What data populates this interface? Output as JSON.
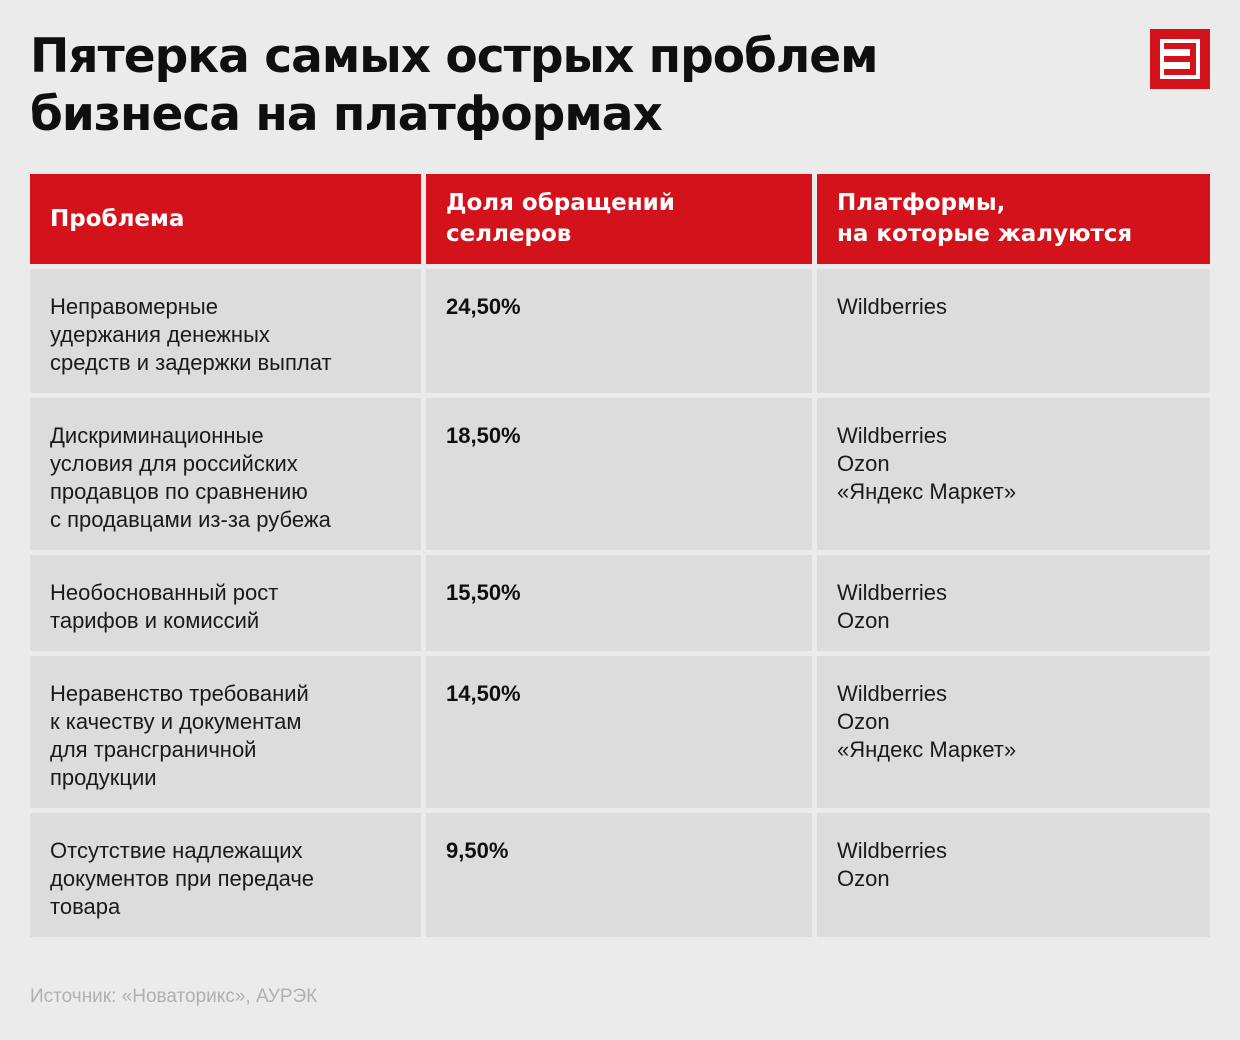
{
  "title": {
    "line1": "Пятерка самых острых проблем",
    "line2": "бизнеса на платформах"
  },
  "logo": {
    "icon": "e-letter-logo-icon",
    "color": "#d3121b"
  },
  "table": {
    "headers": [
      [
        "Проблема"
      ],
      [
        "Доля обращений",
        "селлеров"
      ],
      [
        "Платформы,",
        "на которые жалуются"
      ]
    ],
    "rows": [
      {
        "problem": [
          "Неправомерные",
          "удержания денежных",
          "средств и задержки выплат"
        ],
        "share": "24,50%",
        "platforms": [
          "Wildberries"
        ]
      },
      {
        "problem": [
          "Дискриминационные",
          "условия для российских",
          "продавцов по сравнению",
          "с продавцами из-за рубежа"
        ],
        "share": "18,50%",
        "platforms": [
          "Wildberries",
          "Ozon",
          "«Яндекс Маркет»"
        ]
      },
      {
        "problem": [
          "Необоснованный рост",
          "тарифов и комиссий"
        ],
        "share": "15,50%",
        "platforms": [
          "Wildberries",
          "Ozon"
        ]
      },
      {
        "problem": [
          "Неравенство требований",
          "к качеству и документам",
          "для трансграничной",
          "продукции"
        ],
        "share": "14,50%",
        "platforms": [
          "Wildberries",
          "Ozon",
          "«Яндекс Маркет»"
        ]
      },
      {
        "problem": [
          "Отсутствие надлежащих",
          "документов при передаче",
          "товара"
        ],
        "share": "9,50%",
        "platforms": [
          "Wildberries",
          "Ozon"
        ]
      }
    ]
  },
  "source": "Источник: «Новаторикс», АУРЭК",
  "colors": {
    "accent": "#d3121b",
    "background": "#ebebeb",
    "cell": "#dcdcdc"
  }
}
